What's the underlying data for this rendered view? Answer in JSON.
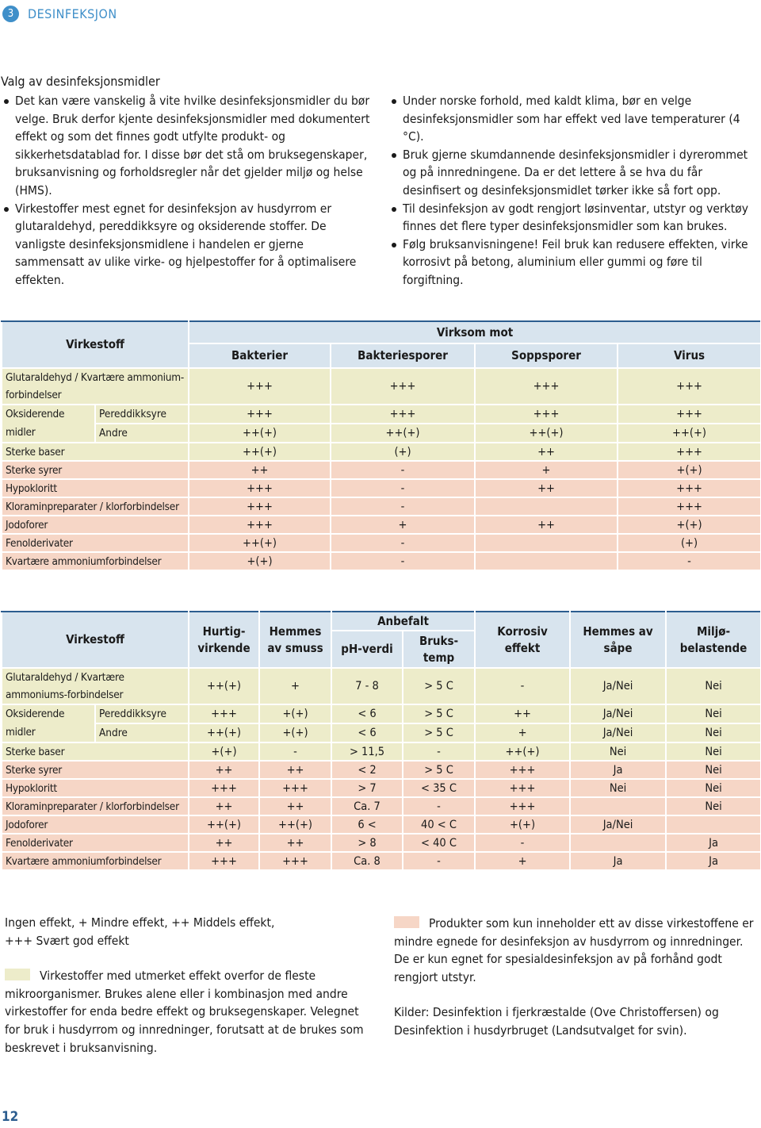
{
  "header": {
    "number": "3",
    "title": "DESINFEKSJON"
  },
  "intro": {
    "heading": "Valg av desinfeksjonsmidler",
    "left": [
      "Det kan være vanskelig å vite hvilke desinfeksjonsmidler du bør velge. Bruk derfor kjente desinfeksjonsmidler med dokumentert effekt og som det finnes godt utfylte produkt- og sikkerhetsdatablad for. I disse bør det stå om bruksegenskaper, bruksanvisning og forholdsregler når det gjelder miljø og helse (HMS).",
      "Virkestoffer mest egnet for desinfeksjon av husdyrrom er glutaraldehyd, pereddikksyre og oksiderende stoffer. De vanligste desinfeksjonsmidlene i handelen er gjerne sammensatt av ulike virke- og hjelpestoffer for å optimalisere effekten."
    ],
    "right": [
      "Under norske forhold, med kaldt klima, bør en velge desinfeksjonsmidler som har effekt ved lave temperaturer (4 °C).",
      "Bruk gjerne skumdannende desinfeksjonsmidler i dyrerommet og på innredningene. Da er det lettere å se hva du får desinfisert og desinfeksjonsmidlet tørker ikke så fort opp.",
      "Til desinfeksjon av godt rengjort løsinventar, utstyr og verktøy finnes det flere typer desinfeksjonsmidler som kan brukes.",
      "Følg bruksanvisningene! Feil bruk kan redusere effekten, virke korrosivt på betong, aluminium eller gummi og føre til forgiftning."
    ]
  },
  "table1": {
    "virkestoff": "Virkestoff",
    "group_title": "Virksom mot",
    "columns": [
      "Bakterier",
      "Bakteriesporer",
      "Soppsporer",
      "Virus"
    ],
    "rows": [
      {
        "name": "Glutaraldehyd / Kvartære ammonium-forbindelser",
        "color": "#edecca",
        "values": [
          "+++",
          "+++",
          "+++",
          "+++"
        ]
      },
      {
        "group": "Oksiderende midler",
        "color": "#edecca",
        "subrows": [
          {
            "name": "Pereddikksyre",
            "values": [
              "+++",
              "+++",
              "+++",
              "+++"
            ]
          },
          {
            "name": "Andre",
            "values": [
              "++(+)",
              "++(+)",
              "++(+)",
              "++(+)"
            ]
          }
        ]
      },
      {
        "name": "Sterke baser",
        "color": "#edecca",
        "values": [
          "++(+)",
          "(+)",
          "++",
          "+++"
        ]
      },
      {
        "name": "Sterke syrer",
        "color": "#f6d6c6",
        "values": [
          "++",
          "-",
          "+",
          "+(+)"
        ]
      },
      {
        "name": "Hypokloritt",
        "color": "#f6d6c6",
        "values": [
          "+++",
          "-",
          "++",
          "+++"
        ]
      },
      {
        "name": "Kloraminpreparater / klorforbindelser",
        "color": "#f6d6c6",
        "values": [
          "+++",
          "-",
          null,
          "+++"
        ]
      },
      {
        "name": "Jodoforer",
        "color": "#f6d6c6",
        "values": [
          "+++",
          "+",
          "++",
          "+(+)"
        ]
      },
      {
        "name": "Fenolderivater",
        "color": "#f6d6c6",
        "values": [
          "++(+)",
          "-",
          null,
          "(+)"
        ]
      },
      {
        "name": "Kvartære ammoniumforbindelser",
        "color": "#f6d6c6",
        "values": [
          "+(+)",
          "-",
          null,
          "-"
        ]
      }
    ]
  },
  "table2": {
    "virkestoff": "Virkestoff",
    "columns": [
      {
        "lines": [
          "Hurtig-",
          "virkende"
        ]
      },
      {
        "lines": [
          "Hemmes",
          "av smuss"
        ]
      },
      {
        "title": "Anbefalt",
        "sub": [
          {
            "lines": [
              "pH-verdi"
            ]
          },
          {
            "lines": [
              "Bruks-",
              "temp"
            ]
          }
        ]
      },
      {
        "lines": [
          "Korrosiv effekt"
        ]
      },
      {
        "lines": [
          "Hemmes av",
          "såpe"
        ]
      },
      {
        "lines": [
          "Miljø-",
          "belastende"
        ]
      }
    ],
    "rows": [
      {
        "name": "Glutaraldehyd / Kvartære ammoniums-forbindelser",
        "color": "#edecca",
        "values": [
          "++(+)",
          "+",
          "7 - 8",
          "> 5 C",
          "-",
          "Ja/Nei",
          "Nei"
        ]
      },
      {
        "group": "Oksiderende midler",
        "color": "#edecca",
        "subrows": [
          {
            "name": "Pereddikksyre",
            "values": [
              "+++",
              "+(+)",
              "< 6",
              "> 5 C",
              "++",
              "Ja/Nei",
              "Nei"
            ]
          },
          {
            "name": "Andre",
            "values": [
              "++(+)",
              "+(+)",
              "< 6",
              "> 5 C",
              "+",
              "Ja/Nei",
              "Nei"
            ]
          }
        ]
      },
      {
        "name": "Sterke baser",
        "color": "#edecca",
        "values": [
          "+(+)",
          "-",
          "> 11,5",
          "-",
          "++(+)",
          "Nei",
          "Nei"
        ]
      },
      {
        "name": "Sterke syrer",
        "color": "#f6d6c6",
        "values": [
          "++",
          "++",
          "< 2",
          "> 5 C",
          "+++",
          "Ja",
          "Nei"
        ]
      },
      {
        "name": "Hypokloritt",
        "color": "#f6d6c6",
        "values": [
          "+++",
          "+++",
          "> 7",
          "< 35 C",
          "+++",
          "Nei",
          "Nei"
        ]
      },
      {
        "name": "Kloraminpreparater / klorforbindelser",
        "color": "#f6d6c6",
        "values": [
          "++",
          "++",
          "Ca. 7",
          "-",
          "+++",
          null,
          "Nei"
        ]
      },
      {
        "name": "Jodoforer",
        "color": "#f6d6c6",
        "values": [
          "++(+)",
          "++(+)",
          "6 <",
          "40 < C",
          "+(+)",
          "Ja/Nei",
          null
        ]
      },
      {
        "name": "Fenolderivater",
        "color": "#f6d6c6",
        "values": [
          "++",
          "++",
          "> 8",
          "< 40 C",
          "-",
          null,
          "Ja"
        ]
      },
      {
        "name": "Kvartære ammoniumforbindelser",
        "color": "#f6d6c6",
        "values": [
          "+++",
          "+++",
          "Ca. 8",
          "-",
          "+",
          "Ja",
          "Ja"
        ]
      }
    ]
  },
  "legend": {
    "effect": "Ingen effekt, + Mindre effekt, ++ Middels effekt, +++ Svært god effekt",
    "green": {
      "color": "#edecca",
      "text": "Virkestoffer med utmerket effekt overfor de fleste mikroorganismer. Brukes alene eller i kombinasjon med andre virkestoffer for enda bedre effekt og bruksegenskaper. Velegnet for bruk i husdyrrom og innredninger, forutsatt at de brukes som beskrevet i bruksanvisning."
    },
    "pink": {
      "color": "#f6d6c6",
      "text": "Produkter som kun inneholder ett av disse virkestoffene er mindre egnede for desinfeksjon av husdyrrom og innredninger. De er kun egnet for spesialdesinfeksjon av på forhånd godt rengjort utstyr."
    },
    "sources": "Kilder: Desinfektion i fjerkræstalde (Ove Christoffersen) og Desinfektion i husdyrbruget (Landsutvalget for svin)."
  },
  "page_number": "12"
}
